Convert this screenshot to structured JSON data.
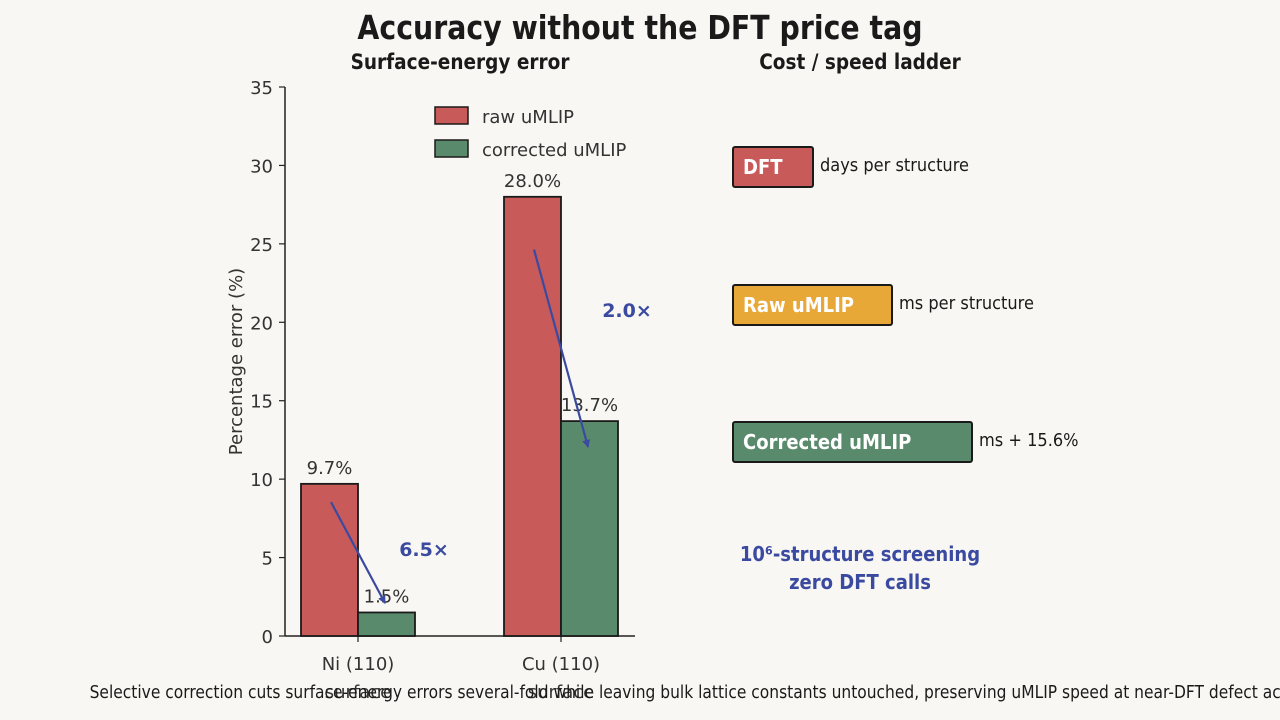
{
  "title": "Accuracy without the DFT price tag",
  "chart_data": {
    "type": "bar",
    "title": "Surface-energy error",
    "ylabel": "Percentage error (%)",
    "xlabel": "",
    "ylim": [
      0,
      35
    ],
    "yticks": [
      0,
      5,
      10,
      15,
      20,
      25,
      30,
      35
    ],
    "categories": [
      "Ni (110)\nsurface",
      "Cu (110)\nsurface"
    ],
    "series": [
      {
        "name": "raw uMLIP",
        "values": [
          9.7,
          28.0
        ],
        "labels": [
          "9.7%",
          "28.0%"
        ],
        "color": "#c85a5a"
      },
      {
        "name": "corrected uMLIP",
        "values": [
          1.5,
          13.7
        ],
        "labels": [
          "1.5%",
          "13.7%"
        ],
        "color": "#5a8a6c"
      }
    ],
    "annotations": [
      {
        "text": "6.5×",
        "category": 0
      },
      {
        "text": "2.0×",
        "category": 1
      }
    ],
    "arrow_color": "#3a4aa0",
    "legend": "top-center"
  },
  "ladder": {
    "title": "Cost / speed ladder",
    "items": [
      {
        "label": "DFT",
        "desc": "days per structure",
        "color": "#c85a5a"
      },
      {
        "label": "Raw uMLIP",
        "desc": "ms per structure",
        "color": "#e8a838"
      },
      {
        "label": "Corrected uMLIP",
        "desc": "ms + 15.6%",
        "color": "#5a8a6c"
      }
    ],
    "note_line1": "10⁶-structure screening",
    "note_line2": "zero DFT calls"
  },
  "footer": "Selective correction cuts surface-energy errors several-fold while leaving bulk lattice constants untouched, preserving uMLIP speed at near-DFT defect accuracy."
}
